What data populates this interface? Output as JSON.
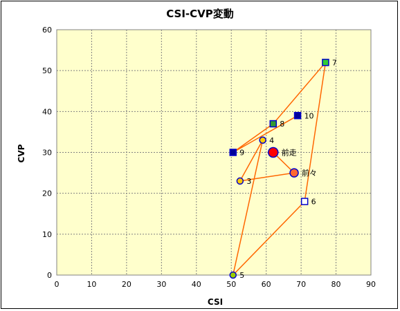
{
  "chart_data": {
    "type": "scatter",
    "title": "CSI-CVP変動",
    "xlabel": "CSI",
    "ylabel": "CVP",
    "xlim": [
      0,
      90
    ],
    "ylim": [
      0,
      60
    ],
    "xticks": [
      "0",
      "10",
      "20",
      "30",
      "40",
      "50",
      "60",
      "70",
      "80",
      "90"
    ],
    "yticks": [
      "0",
      "10",
      "20",
      "30",
      "40",
      "50",
      "60"
    ],
    "grid": true,
    "plot_background": "#FFFFCC",
    "line_color": "#FF6600",
    "points": [
      {
        "label": "前走",
        "x": 62,
        "y": 30,
        "marker": "circle",
        "fill": "#FF0000",
        "stroke": "#0000CC",
        "size": 7
      },
      {
        "label": "前々",
        "x": 68,
        "y": 25,
        "marker": "circle",
        "fill": "#FF6633",
        "stroke": "#0000CC",
        "size": 6
      },
      {
        "label": "3",
        "x": 52.5,
        "y": 23,
        "marker": "circle",
        "fill": "#FFCC00",
        "stroke": "#0000CC",
        "size": 4.5
      },
      {
        "label": "4",
        "x": 59,
        "y": 33,
        "marker": "circle",
        "fill": "#FFCC00",
        "stroke": "#0000CC",
        "size": 4.5
      },
      {
        "label": "5",
        "x": 50.5,
        "y": 0,
        "marker": "circle",
        "fill": "#99CC00",
        "stroke": "#0000CC",
        "size": 4.5
      },
      {
        "label": "6",
        "x": 71,
        "y": 18,
        "marker": "square",
        "fill": "#FFFFFF",
        "stroke": "#0000CC",
        "size": 4.5
      },
      {
        "label": "7",
        "x": 77,
        "y": 52,
        "marker": "square",
        "fill": "#33CC33",
        "stroke": "#0000CC",
        "size": 4.5
      },
      {
        "label": "8",
        "x": 62,
        "y": 37,
        "marker": "square",
        "fill": "#339933",
        "stroke": "#0000CC",
        "size": 4.5
      },
      {
        "label": "9",
        "x": 50.5,
        "y": 30,
        "marker": "square",
        "fill": "#000099",
        "stroke": "#0000CC",
        "size": 4.5
      },
      {
        "label": "10",
        "x": 69,
        "y": 39,
        "marker": "square",
        "fill": "#000099",
        "stroke": "#0000CC",
        "size": 4.5
      }
    ],
    "path_order": [
      "前走",
      "前々",
      "3",
      "4",
      "5",
      "6",
      "7",
      "8",
      "9",
      "10"
    ]
  }
}
